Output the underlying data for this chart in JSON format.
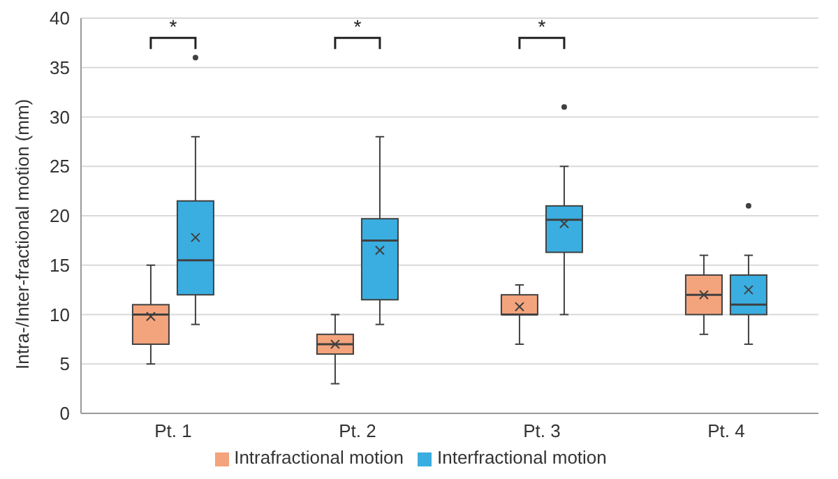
{
  "chart_data": {
    "type": "box",
    "ylabel": "Intra-/Inter-fractional motion (mm)",
    "categories": [
      "Pt. 1",
      "Pt. 2",
      "Pt. 3",
      "Pt. 4"
    ],
    "series": [
      {
        "name": "Intrafractional motion",
        "color": "#f4a47c",
        "boxes": [
          {
            "low": 5,
            "q1": 7,
            "median": 10,
            "q3": 11,
            "high": 15,
            "mean": 9.8
          },
          {
            "low": 3,
            "q1": 6,
            "median": 7,
            "q3": 8,
            "high": 10,
            "mean": 7
          },
          {
            "low": 7,
            "q1": 10,
            "median": 10,
            "q3": 12,
            "high": 13,
            "mean": 10.8
          },
          {
            "low": 8,
            "q1": 10,
            "median": 12,
            "q3": 14,
            "high": 16,
            "mean": 12
          }
        ]
      },
      {
        "name": "Interfractional motion",
        "color": "#3aaee0",
        "boxes": [
          {
            "low": 9,
            "q1": 12,
            "median": 15.5,
            "q3": 21.5,
            "high": 28,
            "mean": 17.8,
            "outliers": [
              36
            ]
          },
          {
            "low": 9,
            "q1": 11.5,
            "median": 17.5,
            "q3": 19.7,
            "high": 28,
            "mean": 16.5
          },
          {
            "low": 10,
            "q1": 16.3,
            "median": 19.6,
            "q3": 21,
            "high": 25,
            "mean": 19.2,
            "outliers": [
              31
            ]
          },
          {
            "low": 7,
            "q1": 10,
            "median": 11,
            "q3": 14,
            "high": 16,
            "mean": 12.5,
            "outliers": [
              21
            ]
          }
        ]
      }
    ],
    "annotations": [
      "*",
      "*",
      "*"
    ],
    "ylim": [
      0,
      40
    ],
    "yticks": [
      0,
      5,
      10,
      15,
      20,
      25,
      30,
      35,
      40
    ],
    "grid": "y",
    "legend": "bottom"
  }
}
